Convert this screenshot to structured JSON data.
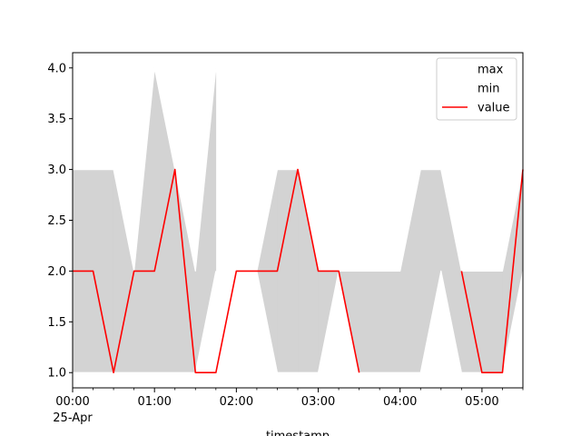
{
  "chart_data": {
    "type": "area",
    "xlabel": "timestamp",
    "ylabel": "",
    "ylim": [
      0.85,
      4.15
    ],
    "xlim": [
      "25-Apr 00:00",
      "25-Apr 05:30"
    ],
    "x": [
      "00:00",
      "00:15",
      "00:30",
      "00:45",
      "01:00",
      "01:15",
      "01:30",
      "01:45",
      "02:00",
      "02:15",
      "02:30",
      "02:45",
      "03:00",
      "03:15",
      "03:30",
      "03:45",
      "04:00",
      "04:15",
      "04:30",
      "04:45",
      "05:00",
      "05:15",
      "05:30"
    ],
    "x_ticks": [
      {
        "label": "00:00",
        "sublabel": "25-Apr"
      },
      {
        "label": "01:00",
        "sublabel": ""
      },
      {
        "label": "02:00",
        "sublabel": ""
      },
      {
        "label": "03:00",
        "sublabel": ""
      },
      {
        "label": "04:00",
        "sublabel": ""
      },
      {
        "label": "05:00",
        "sublabel": ""
      }
    ],
    "y_ticks": [
      "1.0",
      "1.5",
      "2.0",
      "2.5",
      "3.0",
      "3.5",
      "4.0"
    ],
    "y_tick_values": [
      1.0,
      1.5,
      2.0,
      2.5,
      3.0,
      3.5,
      4.0
    ],
    "series": [
      {
        "name": "max",
        "values": [
          3,
          3,
          3,
          2,
          4,
          3,
          2,
          4,
          3,
          2,
          3,
          3,
          2,
          2,
          2,
          2,
          2,
          3,
          3,
          2,
          2,
          2,
          3
        ],
        "color": "#ffffff",
        "style": "line"
      },
      {
        "name": "min",
        "values": [
          1,
          1,
          1,
          1,
          1,
          1,
          1,
          2,
          null,
          2,
          1,
          1,
          1,
          2,
          1,
          1,
          1,
          1,
          2,
          1,
          1,
          1,
          2
        ],
        "color": "#ffffff",
        "style": "line"
      },
      {
        "name": "value",
        "values": [
          2,
          2,
          1,
          2,
          2,
          3,
          1,
          1,
          2,
          2,
          2,
          3,
          2,
          2,
          1,
          null,
          null,
          null,
          null,
          2,
          1,
          1,
          3
        ],
        "color": "#ff0000",
        "style": "line"
      }
    ],
    "band_color": "#d3d3d3",
    "grid": false,
    "legend_position": "top-right"
  }
}
